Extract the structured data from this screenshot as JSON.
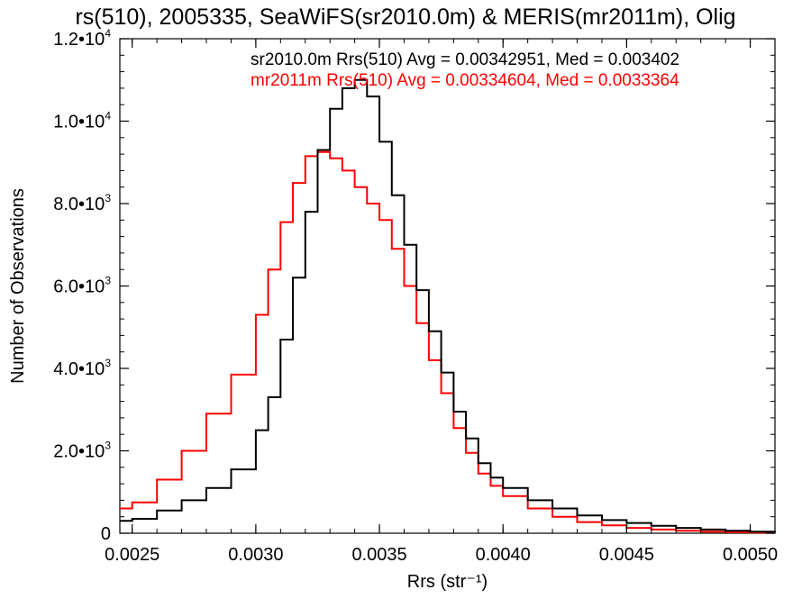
{
  "chart_data": {
    "type": "line",
    "title": "rs(510), 2005335, SeaWiFS(sr2010.0m) & MERIS(mr2011m), Olig",
    "xlabel": "Rrs (str⁻¹)",
    "ylabel": "Number of Observations",
    "xlim": [
      0.00245,
      0.0051
    ],
    "ylim": [
      0,
      12000
    ],
    "x_ticks": [
      {
        "value": 0.0025,
        "label": "0.0025"
      },
      {
        "value": 0.003,
        "label": "0.0030"
      },
      {
        "value": 0.0035,
        "label": "0.0035"
      },
      {
        "value": 0.004,
        "label": "0.0040"
      },
      {
        "value": 0.0045,
        "label": "0.0045"
      },
      {
        "value": 0.005,
        "label": "0.0050"
      }
    ],
    "y_ticks": [
      {
        "value": 0,
        "mantissa": "0",
        "exp": ""
      },
      {
        "value": 2000,
        "mantissa": "2.0•10",
        "exp": "3"
      },
      {
        "value": 4000,
        "mantissa": "4.0•10",
        "exp": "3"
      },
      {
        "value": 6000,
        "mantissa": "6.0•10",
        "exp": "3"
      },
      {
        "value": 8000,
        "mantissa": "8.0•10",
        "exp": "3"
      },
      {
        "value": 10000,
        "mantissa": "1.0•10",
        "exp": "4"
      },
      {
        "value": 12000,
        "mantissa": "1.2•10",
        "exp": "4"
      }
    ],
    "legend_placement": "top-right",
    "grid": false,
    "series": [
      {
        "name": "sr2010.0m Rrs(510) Avg = 0.00342951, Med = 0.003402",
        "color": "#000000",
        "x": [
          0.00245,
          0.0025,
          0.0026,
          0.0027,
          0.0028,
          0.0029,
          0.003,
          0.00305,
          0.0031,
          0.00315,
          0.0032,
          0.00325,
          0.0033,
          0.00335,
          0.0034,
          0.00345,
          0.0035,
          0.00355,
          0.0036,
          0.00365,
          0.0037,
          0.00375,
          0.0038,
          0.00385,
          0.0039,
          0.00395,
          0.004,
          0.0041,
          0.0042,
          0.0043,
          0.0044,
          0.0045,
          0.0046,
          0.0047,
          0.0048,
          0.0049,
          0.005,
          0.0051
        ],
        "y": [
          300,
          350,
          550,
          800,
          1100,
          1550,
          2500,
          3300,
          4700,
          6200,
          7800,
          9300,
          10300,
          10800,
          11000,
          10600,
          9500,
          8200,
          7000,
          5900,
          4900,
          3900,
          2950,
          2300,
          1700,
          1350,
          1100,
          800,
          600,
          430,
          320,
          250,
          180,
          130,
          90,
          60,
          40,
          30
        ]
      },
      {
        "name": "mr2011m Rrs(510) Avg = 0.00334604, Med = 0.0033364",
        "color": "#ff0000",
        "x": [
          0.00245,
          0.0025,
          0.0026,
          0.0027,
          0.0028,
          0.0029,
          0.003,
          0.00305,
          0.0031,
          0.00315,
          0.0032,
          0.00325,
          0.0033,
          0.00335,
          0.0034,
          0.00345,
          0.0035,
          0.00355,
          0.0036,
          0.00365,
          0.0037,
          0.00375,
          0.0038,
          0.00385,
          0.0039,
          0.00395,
          0.004,
          0.0041,
          0.0042,
          0.0043,
          0.0044,
          0.0045,
          0.0046,
          0.0047,
          0.0048,
          0.0049,
          0.005,
          0.0051
        ],
        "y": [
          600,
          750,
          1300,
          2000,
          2900,
          3850,
          5300,
          6400,
          7550,
          8500,
          9150,
          9250,
          9100,
          8800,
          8400,
          8000,
          7600,
          6900,
          6000,
          5100,
          4200,
          3400,
          2550,
          1950,
          1450,
          1150,
          900,
          600,
          400,
          270,
          190,
          130,
          90,
          60,
          40,
          25,
          15,
          10
        ]
      }
    ]
  }
}
